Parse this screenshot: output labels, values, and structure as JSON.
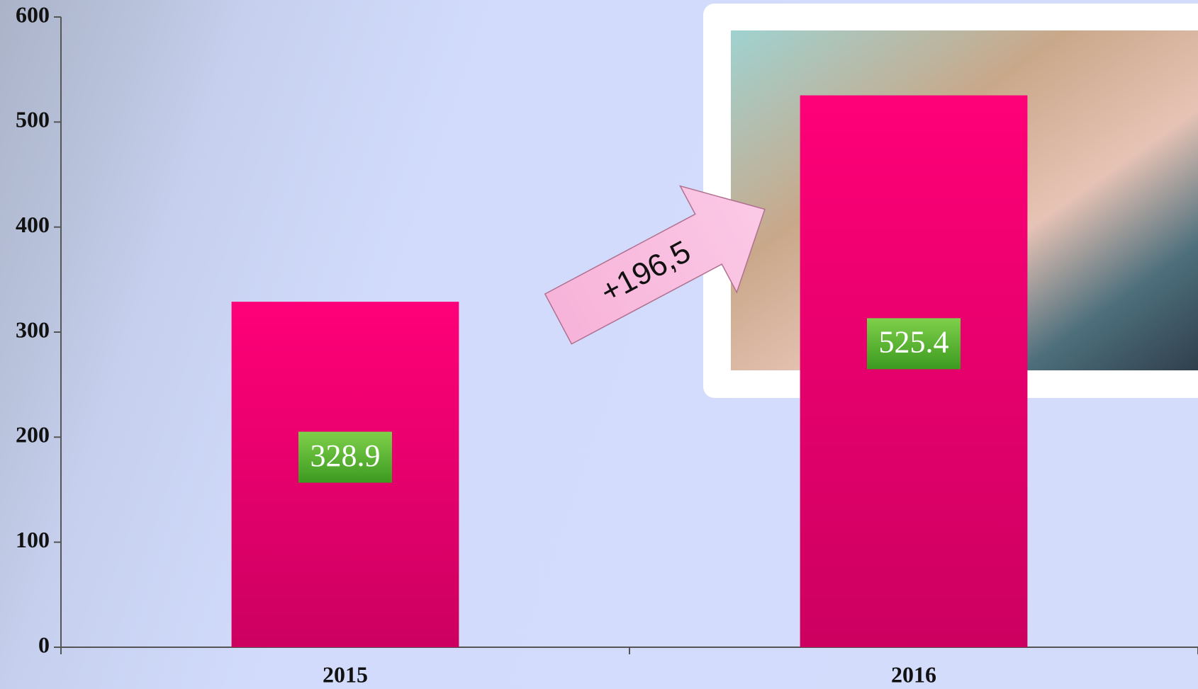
{
  "chart_data": {
    "type": "bar",
    "categories": [
      "2015",
      "2016"
    ],
    "values": [
      328.9,
      525.4
    ],
    "color": "#e8006a",
    "label_color": "#4fae2c",
    "ylim": [
      0,
      600
    ],
    "yticks": [
      0,
      100,
      200,
      300,
      400,
      500,
      600
    ],
    "annotation": "+196,5"
  }
}
